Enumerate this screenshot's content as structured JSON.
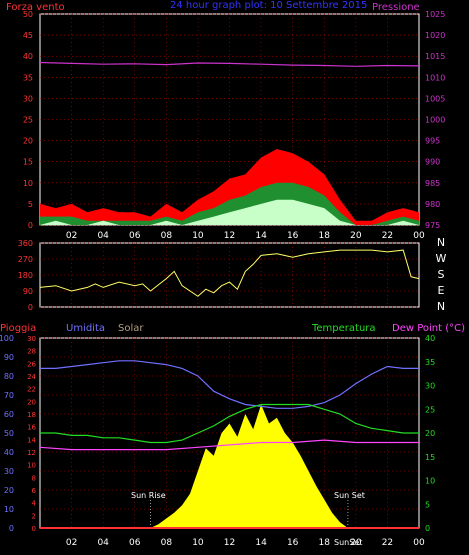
{
  "colors": {
    "background": "#000000",
    "axis": "#ffffff",
    "grid": "#c00000",
    "wind_max": "#ff0000",
    "wind_avg": "#1f8f2f",
    "wind_min": "#c8ffc8",
    "pressure": "#cc33cc",
    "direction": "#ffff66",
    "humidity": "#7070ff",
    "solar": "#ffff00",
    "temperature": "#22dd22",
    "dewpoint": "#ff44ff",
    "rain": "#ff3333",
    "left_axis_wind": "#ff3333",
    "right_axis_pressure": "#cc33cc",
    "humidity_axis": "#7070ff",
    "rain_axis": "#ff3333",
    "temp_axis": "#22dd22",
    "title": "#3333ff"
  },
  "chart_data": [
    {
      "type": "line",
      "id": "wind_pressure",
      "title": "24 hour graph plot: 10 Settembre 2015",
      "left_label": "Forza vento",
      "right_label": "Pressione",
      "x_ticks": [
        "02",
        "04",
        "06",
        "08",
        "10",
        "12",
        "14",
        "16",
        "18",
        "20",
        "22",
        "00"
      ],
      "x_range_hours": [
        0,
        24
      ],
      "y_left_ticks": [
        "0",
        "5",
        "10",
        "15",
        "20",
        "25",
        "30",
        "35",
        "40",
        "45",
        "50"
      ],
      "y_left_range": [
        0,
        50
      ],
      "y_right_ticks": [
        "975",
        "980",
        "985",
        "990",
        "995",
        "1000",
        "1005",
        "1010",
        "1015",
        "1020",
        "1025"
      ],
      "y_right_range": [
        975,
        1025
      ],
      "series": [
        {
          "key": "wind_max",
          "hours": [
            0,
            1,
            2,
            3,
            4,
            5,
            6,
            7,
            8,
            9,
            10,
            11,
            12,
            13,
            14,
            15,
            16,
            17,
            18,
            19,
            20,
            21,
            22,
            23,
            24
          ],
          "values": [
            5,
            4,
            5,
            3,
            4,
            3,
            3,
            2,
            5,
            3,
            6,
            8,
            11,
            12,
            16,
            18,
            17,
            15,
            12,
            6,
            1,
            1,
            3,
            4,
            3
          ]
        },
        {
          "key": "wind_avg",
          "hours": [
            0,
            1,
            2,
            3,
            4,
            5,
            6,
            7,
            8,
            9,
            10,
            11,
            12,
            13,
            14,
            15,
            16,
            17,
            18,
            19,
            20,
            21,
            22,
            23,
            24
          ],
          "values": [
            2,
            2,
            2,
            1,
            1,
            1,
            1,
            1,
            2,
            1,
            3,
            4,
            6,
            7,
            9,
            10,
            10,
            9,
            7,
            3,
            0,
            0,
            1,
            2,
            1
          ]
        },
        {
          "key": "wind_min",
          "hours": [
            0,
            1,
            2,
            3,
            4,
            5,
            6,
            7,
            8,
            9,
            10,
            11,
            12,
            13,
            14,
            15,
            16,
            17,
            18,
            19,
            20,
            21,
            22,
            23,
            24
          ],
          "values": [
            0,
            1,
            0,
            0,
            1,
            0,
            0,
            0,
            1,
            0,
            1,
            2,
            3,
            4,
            5,
            6,
            6,
            5,
            4,
            1,
            0,
            0,
            0,
            1,
            0
          ]
        },
        {
          "key": "pressure",
          "axis": "right",
          "hours": [
            0,
            2,
            4,
            6,
            8,
            10,
            12,
            14,
            16,
            18,
            20,
            22,
            24
          ],
          "values": [
            1013.5,
            1013.3,
            1013.1,
            1013.2,
            1013.0,
            1013.4,
            1013.3,
            1013.1,
            1012.9,
            1012.8,
            1012.6,
            1012.8,
            1012.7
          ]
        }
      ]
    },
    {
      "type": "line",
      "id": "wind_direction",
      "y_ticks": [
        "0",
        "90",
        "180",
        "270",
        "360"
      ],
      "y_range": [
        0,
        360
      ],
      "compass": [
        "N",
        "W",
        "S",
        "E",
        "N"
      ],
      "series": [
        {
          "key": "direction",
          "hours": [
            0,
            1,
            2,
            3,
            3.5,
            4,
            5,
            6,
            6.5,
            7,
            8,
            8.5,
            9,
            10,
            10.5,
            11,
            11.5,
            12,
            12.5,
            13,
            13.5,
            14,
            15,
            16,
            17,
            18,
            19,
            20,
            21,
            22,
            23,
            23.5,
            24
          ],
          "values": [
            110,
            120,
            90,
            110,
            130,
            110,
            140,
            120,
            130,
            90,
            160,
            200,
            120,
            60,
            100,
            80,
            120,
            140,
            100,
            200,
            240,
            290,
            300,
            280,
            300,
            310,
            320,
            320,
            320,
            310,
            320,
            170,
            160
          ]
        }
      ]
    },
    {
      "type": "line",
      "id": "humidity_temp_solar",
      "labels": {
        "rain": "Pioggia",
        "humidity": "Umidita",
        "solar": "Solar",
        "temperature": "Temperatura",
        "dewpoint": "Dew Point (°C)",
        "sunrise": "Sun Rise",
        "sunset": "Sun Set",
        "sunset_bottom": "SunSet"
      },
      "x_ticks": [
        "02",
        "04",
        "06",
        "08",
        "10",
        "12",
        "14",
        "16",
        "18",
        "20",
        "22",
        "00"
      ],
      "y_humidity_ticks": [
        "0",
        "10",
        "20",
        "30",
        "40",
        "50",
        "60",
        "70",
        "80",
        "90",
        "100"
      ],
      "y_humidity_range": [
        0,
        100
      ],
      "y_rain_ticks": [
        "0",
        "2",
        "4",
        "6",
        "8",
        "10",
        "12",
        "14",
        "16",
        "18",
        "20",
        "22",
        "24",
        "26",
        "28",
        "30"
      ],
      "y_rain_range": [
        0,
        30
      ],
      "y_temp_ticks": [
        "0",
        "5",
        "10",
        "15",
        "20",
        "25",
        "30",
        "35",
        "40"
      ],
      "y_temp_range": [
        0,
        40
      ],
      "sunrise_hour": 7.0,
      "sunset_hour": 19.5,
      "series": [
        {
          "key": "humidity",
          "axis": "humidity",
          "hours": [
            0,
            1,
            2,
            3,
            4,
            5,
            6,
            7,
            8,
            9,
            10,
            11,
            12,
            13,
            14,
            15,
            16,
            17,
            18,
            19,
            20,
            21,
            22,
            23,
            24
          ],
          "values": [
            84,
            84,
            85,
            86,
            87,
            88,
            88,
            87,
            86,
            84,
            80,
            72,
            68,
            65,
            64,
            63,
            63,
            64,
            66,
            70,
            76,
            81,
            85,
            84,
            84
          ]
        },
        {
          "key": "temperature",
          "axis": "temp",
          "hours": [
            0,
            1,
            2,
            3,
            4,
            5,
            6,
            7,
            8,
            9,
            10,
            11,
            12,
            13,
            14,
            15,
            16,
            17,
            18,
            19,
            20,
            21,
            22,
            23,
            24
          ],
          "values": [
            20,
            20,
            19.5,
            19.5,
            19,
            19,
            18.5,
            18,
            18,
            18.5,
            20,
            21.5,
            23.5,
            25,
            26,
            26,
            26,
            26,
            25,
            24,
            22,
            21,
            20.5,
            20,
            20
          ]
        },
        {
          "key": "dewpoint",
          "axis": "temp",
          "hours": [
            0,
            2,
            4,
            6,
            8,
            10,
            12,
            14,
            16,
            18,
            20,
            22,
            24
          ],
          "values": [
            17,
            16.5,
            16.5,
            16.5,
            16.5,
            17,
            17.5,
            18,
            18,
            18.5,
            18,
            18,
            18
          ]
        },
        {
          "key": "solar",
          "axis": "humidity",
          "hours": [
            7,
            7.5,
            8,
            8.5,
            9,
            9.5,
            10,
            10.5,
            11,
            11.5,
            12,
            12.5,
            13,
            13.5,
            14,
            14.5,
            15,
            15.5,
            16,
            16.5,
            17,
            17.5,
            18,
            18.5,
            19,
            19.5
          ],
          "values": [
            0,
            2,
            5,
            8,
            12,
            18,
            30,
            42,
            38,
            50,
            55,
            48,
            60,
            52,
            65,
            55,
            58,
            50,
            45,
            38,
            30,
            22,
            15,
            8,
            3,
            0
          ]
        },
        {
          "key": "rain",
          "axis": "rain",
          "hours": [
            0,
            24
          ],
          "values": [
            0,
            0
          ]
        }
      ]
    }
  ]
}
